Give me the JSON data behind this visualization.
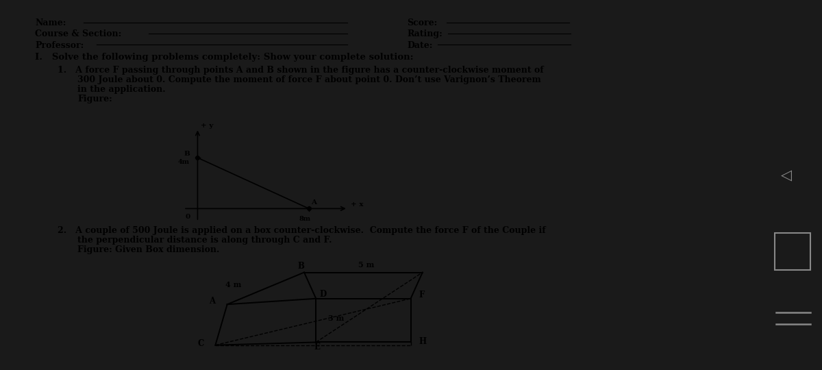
{
  "bg_color": "#1a1a1a",
  "paper_color": "#efefef",
  "text_color": "#000000",
  "side_color": "#2a2a2a",
  "section_title": "I.   Solve the following problems completely: Show your complete solution:",
  "problem1_lines": [
    "1.   A force F passing through points A and B shown in the figure has a counter-clockwise moment of",
    "300 Joule about 0. Compute the moment of force F about point 0. Don’t use Varignon’s Theorem",
    "in the application.",
    "Figure:"
  ],
  "problem2_lines": [
    "2.   A couple of 500 Joule is applied on a box counter-clockwise.  Compute the force F of the Couple if",
    "the perpendicular distance is along through C and F.",
    "Figure: Given Box dimension."
  ],
  "header_left": [
    "Name:",
    "Course & Section:",
    "Professor:"
  ],
  "header_right": [
    "Score:",
    "Rating:",
    "Date:"
  ],
  "fig1_B": [
    0,
    4
  ],
  "fig1_A": [
    8,
    0
  ],
  "fig1_label_4m": "4m",
  "fig1_label_8m": "8m",
  "fig1_label_plusx": "+ x",
  "fig1_label_plusy": "+ y",
  "fig1_label_O": "0",
  "fig1_label_B": "B",
  "fig1_label_A": "A",
  "fig2_label_4m": "4 m",
  "fig2_label_5m": "5 m",
  "fig2_label_3m": "3 m",
  "fig2_labels": [
    "B",
    "A",
    "D",
    "C",
    "F",
    "E",
    "H"
  ]
}
